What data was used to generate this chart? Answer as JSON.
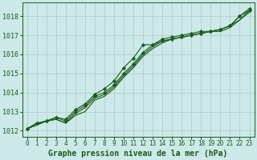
{
  "background_color": "#cce8e8",
  "grid_color": "#aacccc",
  "line_color": "#1a5c1a",
  "xlabel": "Graphe pression niveau de la mer (hPa)",
  "xlabel_fontsize": 7,
  "xlabel_color": "#1a5c1a",
  "tick_color": "#1a5c1a",
  "ylim": [
    1011.7,
    1018.7
  ],
  "xlim": [
    -0.5,
    23.5
  ],
  "yticks": [
    1012,
    1013,
    1014,
    1015,
    1016,
    1017,
    1018
  ],
  "xticks": [
    0,
    1,
    2,
    3,
    4,
    5,
    6,
    7,
    8,
    9,
    10,
    11,
    12,
    13,
    14,
    15,
    16,
    17,
    18,
    19,
    20,
    21,
    22,
    23
  ],
  "series": [
    [
      1012.1,
      1012.4,
      1012.5,
      1012.7,
      1012.6,
      1013.1,
      1013.4,
      1013.9,
      1014.2,
      1014.6,
      1015.3,
      1015.8,
      1016.5,
      1016.5,
      1016.8,
      1016.9,
      1017.0,
      1017.1,
      1017.2,
      1017.2,
      1017.3,
      1017.5,
      1018.0,
      1018.4
    ],
    [
      1012.1,
      1012.4,
      1012.5,
      1012.7,
      1012.5,
      1013.0,
      1013.3,
      1013.8,
      1014.0,
      1014.4,
      1015.0,
      1015.5,
      1016.1,
      1016.5,
      1016.7,
      1016.8,
      1016.9,
      1017.0,
      1017.1,
      1017.2,
      1017.3,
      1017.5,
      1018.0,
      1018.3
    ],
    [
      1012.1,
      1012.3,
      1012.5,
      1012.6,
      1012.4,
      1012.9,
      1013.2,
      1013.7,
      1013.9,
      1014.3,
      1014.9,
      1015.4,
      1016.0,
      1016.4,
      1016.7,
      1016.8,
      1016.9,
      1017.0,
      1017.1,
      1017.2,
      1017.3,
      1017.5,
      1017.8,
      1018.3
    ],
    [
      1012.1,
      1012.3,
      1012.5,
      1012.6,
      1012.4,
      1012.8,
      1013.0,
      1013.6,
      1013.8,
      1014.2,
      1014.8,
      1015.3,
      1015.9,
      1016.3,
      1016.6,
      1016.8,
      1016.9,
      1017.0,
      1017.1,
      1017.2,
      1017.2,
      1017.4,
      1017.8,
      1018.2
    ]
  ],
  "marker_series": [
    0,
    1
  ],
  "marker": "D",
  "marker_size": 2.2
}
